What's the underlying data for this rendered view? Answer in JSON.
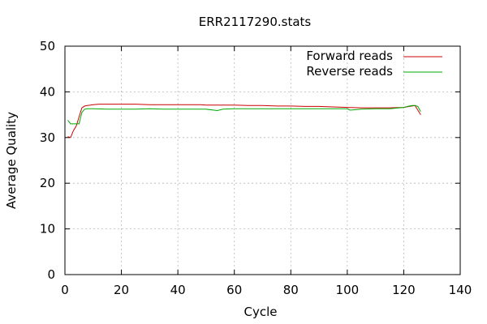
{
  "chart_data": {
    "type": "line",
    "title": "ERR2117290.stats",
    "xlabel": "Cycle",
    "ylabel": "Average Quality",
    "xlim": [
      0,
      140
    ],
    "ylim": [
      0,
      50
    ],
    "xticks": [
      0,
      20,
      40,
      60,
      80,
      100,
      120,
      140
    ],
    "yticks": [
      0,
      10,
      20,
      30,
      40,
      50
    ],
    "grid": true,
    "legend_position": "top-right",
    "series": [
      {
        "name": "Forward reads",
        "color": "#cc0000",
        "x": [
          1,
          2,
          3,
          4,
          5,
          6,
          7,
          8,
          9,
          10,
          12,
          15,
          20,
          25,
          30,
          35,
          40,
          45,
          48,
          50,
          55,
          60,
          65,
          70,
          75,
          80,
          85,
          90,
          95,
          100,
          105,
          110,
          115,
          120,
          122,
          124,
          125,
          126
        ],
        "y": [
          30.2,
          30.0,
          31.5,
          32.5,
          34.5,
          36.5,
          36.9,
          37.0,
          37.1,
          37.2,
          37.3,
          37.3,
          37.3,
          37.3,
          37.2,
          37.2,
          37.2,
          37.2,
          37.2,
          37.1,
          37.1,
          37.1,
          37.0,
          37.0,
          36.9,
          36.9,
          36.8,
          36.8,
          36.7,
          36.6,
          36.5,
          36.5,
          36.5,
          36.6,
          36.8,
          37.0,
          36.0,
          35.0
        ]
      },
      {
        "name": "Reverse reads",
        "color": "#00aa00",
        "x": [
          1,
          2,
          3,
          4,
          5,
          6,
          7,
          8,
          10,
          15,
          20,
          25,
          30,
          35,
          40,
          45,
          50,
          54,
          56,
          60,
          65,
          70,
          75,
          80,
          85,
          90,
          95,
          100,
          101,
          105,
          110,
          115,
          120,
          122,
          123,
          124,
          125,
          126
        ],
        "y": [
          33.8,
          33.0,
          33.0,
          33.0,
          33.0,
          35.5,
          36.2,
          36.3,
          36.3,
          36.2,
          36.2,
          36.2,
          36.3,
          36.2,
          36.2,
          36.2,
          36.2,
          35.9,
          36.2,
          36.3,
          36.3,
          36.3,
          36.3,
          36.3,
          36.3,
          36.3,
          36.3,
          36.3,
          36.0,
          36.2,
          36.3,
          36.3,
          36.6,
          36.9,
          37.0,
          37.0,
          36.8,
          35.7
        ]
      }
    ]
  }
}
